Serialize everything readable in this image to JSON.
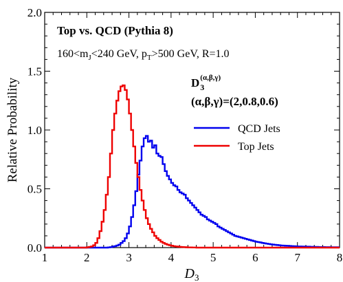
{
  "chart_data": {
    "type": "line",
    "style": "step-histogram",
    "title": "Top vs. QCD (Pythia 8)",
    "subtitle": "160<m_J<240 GeV, p_T>500 GeV, R=1.0",
    "observable": "D_3^(α,β,γ)",
    "parameters": "(α,β,γ)=(2,0.8,0.6)",
    "xlabel": "D_3",
    "ylabel": "Relative Probability",
    "xlim": [
      1,
      8
    ],
    "ylim": [
      0,
      2
    ],
    "xticks": [
      1,
      2,
      3,
      4,
      5,
      6,
      7,
      8
    ],
    "yticks": [
      "0.0",
      "0.5",
      "1.0",
      "1.5",
      "2.0"
    ],
    "grid": false,
    "legend_position": "right",
    "bin_width": 0.05,
    "x_start": 1.0,
    "series": [
      {
        "name": "QCD Jets",
        "color": "#0000ee",
        "values": [
          0,
          0,
          0,
          0,
          0,
          0,
          0,
          0,
          0,
          0,
          0,
          0,
          0,
          0,
          0,
          0,
          0,
          0,
          0,
          0,
          0,
          0,
          0,
          0,
          0,
          0,
          0,
          0,
          0,
          0,
          0.002,
          0.004,
          0.008,
          0.012,
          0.018,
          0.025,
          0.04,
          0.055,
          0.08,
          0.12,
          0.18,
          0.26,
          0.36,
          0.48,
          0.62,
          0.74,
          0.86,
          0.93,
          0.95,
          0.9,
          0.91,
          0.85,
          0.87,
          0.8,
          0.78,
          0.77,
          0.71,
          0.65,
          0.61,
          0.58,
          0.55,
          0.53,
          0.52,
          0.49,
          0.47,
          0.46,
          0.45,
          0.42,
          0.4,
          0.38,
          0.36,
          0.34,
          0.32,
          0.3,
          0.28,
          0.27,
          0.26,
          0.24,
          0.23,
          0.22,
          0.21,
          0.2,
          0.18,
          0.17,
          0.16,
          0.15,
          0.14,
          0.13,
          0.12,
          0.11,
          0.1,
          0.095,
          0.09,
          0.085,
          0.08,
          0.075,
          0.07,
          0.065,
          0.06,
          0.055,
          0.05,
          0.047,
          0.044,
          0.04,
          0.037,
          0.034,
          0.031,
          0.028,
          0.026,
          0.024,
          0.022,
          0.02,
          0.018,
          0.017,
          0.016,
          0.015,
          0.014,
          0.013,
          0.012,
          0.011,
          0.01,
          0.01,
          0.009,
          0.009,
          0.008,
          0.008,
          0.007,
          0.007,
          0.006,
          0.006,
          0.005,
          0.005,
          0.005,
          0.004,
          0.004,
          0.004,
          0.003,
          0.003,
          0.003,
          0.003
        ]
      },
      {
        "name": "Top Jets",
        "color": "#ee0000",
        "values": [
          0,
          0,
          0,
          0,
          0,
          0,
          0,
          0,
          0,
          0,
          0,
          0,
          0,
          0,
          0,
          0,
          0,
          0,
          0,
          0,
          0.003,
          0.006,
          0.01,
          0.02,
          0.04,
          0.08,
          0.14,
          0.22,
          0.32,
          0.45,
          0.6,
          0.8,
          1.0,
          1.14,
          1.25,
          1.33,
          1.37,
          1.38,
          1.34,
          1.26,
          1.14,
          1.0,
          0.86,
          0.72,
          0.6,
          0.49,
          0.4,
          0.32,
          0.25,
          0.2,
          0.16,
          0.13,
          0.1,
          0.08,
          0.065,
          0.05,
          0.04,
          0.032,
          0.025,
          0.02,
          0.016,
          0.012,
          0.01,
          0.008,
          0.006,
          0.005,
          0.004,
          0.003,
          0.002,
          0.002,
          0.001,
          0.001,
          0,
          0,
          0,
          0,
          0,
          0,
          0,
          0,
          0,
          0,
          0,
          0,
          0,
          0,
          0,
          0,
          0,
          0,
          0,
          0,
          0,
          0,
          0,
          0,
          0,
          0,
          0,
          0,
          0,
          0,
          0,
          0,
          0,
          0,
          0,
          0,
          0,
          0,
          0,
          0,
          0,
          0,
          0,
          0,
          0,
          0,
          0,
          0,
          0,
          0,
          0,
          0,
          0,
          0,
          0,
          0,
          0,
          0,
          0,
          0,
          0,
          0,
          0,
          0,
          0,
          0,
          0,
          0
        ]
      }
    ]
  }
}
